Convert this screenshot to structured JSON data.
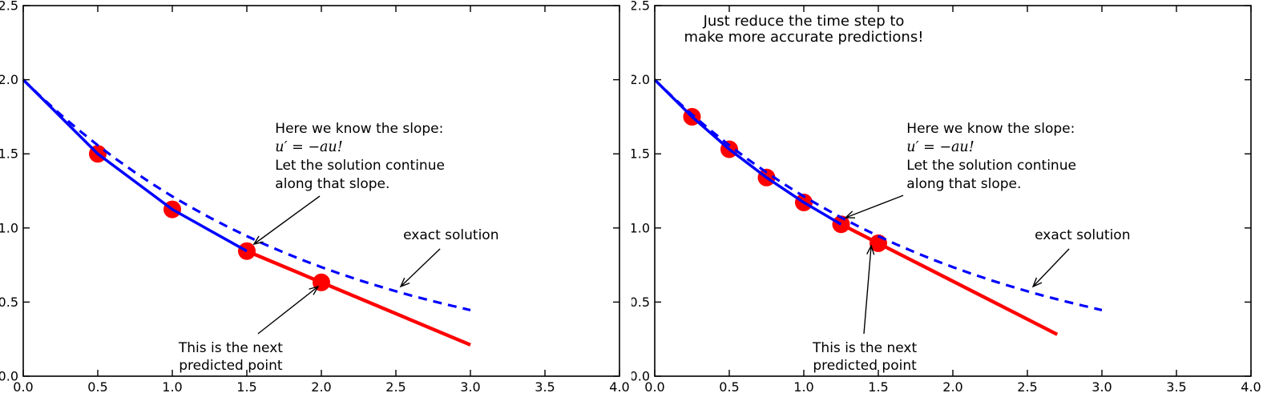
{
  "colors": {
    "blue": "#0000ff",
    "red": "#ff0000",
    "axis": "#000000",
    "text": "#000000",
    "background": "#ffffff"
  },
  "chart_data": [
    {
      "type": "line",
      "title_lines": [],
      "xlabel": "",
      "ylabel": "",
      "xlim": [
        0,
        4
      ],
      "ylim": [
        0,
        2.5
      ],
      "xtick_values": [
        0,
        0.5,
        1,
        1.5,
        2,
        2.5,
        3,
        3.5,
        4
      ],
      "xtick_labels": [
        "0.0",
        "0.5",
        "1.0",
        "1.5",
        "2.0",
        "2.5",
        "3.0",
        "3.5",
        "4.0"
      ],
      "ytick_values": [
        0,
        0.5,
        1,
        1.5,
        2,
        2.5
      ],
      "ytick_labels": [
        "0.0",
        "0.5",
        "1.0",
        "1.5",
        "2.0",
        "2.5"
      ],
      "grid": false,
      "series": [
        {
          "name": "numerical-solution",
          "style": "solid",
          "color": "blue",
          "lw": 3.5,
          "x": [
            0,
            0.5,
            1.0,
            1.5
          ],
          "y": [
            2.0,
            1.5,
            1.125,
            0.844
          ]
        },
        {
          "name": "exact-solution",
          "style": "dashed",
          "color": "blue",
          "lw": 3.2,
          "x": [
            0,
            0.125,
            0.25,
            0.375,
            0.5,
            0.625,
            0.75,
            0.875,
            1,
            1.125,
            1.25,
            1.375,
            1.5,
            1.625,
            1.75,
            1.875,
            2,
            2.125,
            2.25,
            2.375,
            2.5,
            2.625,
            2.75,
            2.875,
            3
          ],
          "y": [
            2.0,
            1.879,
            1.765,
            1.658,
            1.558,
            1.463,
            1.375,
            1.291,
            1.213,
            1.14,
            1.071,
            1.006,
            0.945,
            0.887,
            0.834,
            0.783,
            0.736,
            0.691,
            0.649,
            0.61,
            0.573,
            0.538,
            0.506,
            0.475,
            0.446
          ]
        },
        {
          "name": "predicted-continuation",
          "style": "solid",
          "color": "red",
          "lw": 4.4,
          "x": [
            1.5,
            3.0
          ],
          "y": [
            0.844,
            0.211
          ]
        }
      ],
      "markers": {
        "color": "red",
        "r": 11,
        "points": [
          [
            0.5,
            1.5
          ],
          [
            1.0,
            1.125
          ],
          [
            1.5,
            0.844
          ],
          [
            2.0,
            0.633
          ]
        ]
      },
      "arrows": [
        {
          "from": [
            1.989,
            1.215
          ],
          "to": [
            1.548,
            0.891
          ]
        },
        {
          "from": [
            1.575,
            0.286
          ],
          "to": [
            1.978,
            0.605
          ]
        },
        {
          "from": [
            2.796,
            0.859
          ],
          "to": [
            2.532,
            0.605
          ]
        }
      ],
      "annotations": [
        {
          "name": "slope-note",
          "x": 1.69,
          "y": 1.641,
          "anchor": "start",
          "line_height": 23,
          "size": 17,
          "lines": [
            {
              "text": "Here we know the slope:",
              "math": false
            },
            {
              "text": "u′ = −au!",
              "math": true
            },
            {
              "text": "Let the solution continue",
              "math": false
            },
            {
              "text": "along that slope.",
              "math": false
            }
          ]
        },
        {
          "name": "exact-solution-label",
          "x": 2.87,
          "y": 0.923,
          "anchor": "middle",
          "line_height": 22,
          "size": 17,
          "lines": [
            {
              "text": "exact solution",
              "math": false
            }
          ]
        },
        {
          "name": "predicted-point-label",
          "x": 1.392,
          "y": 0.162,
          "anchor": "middle",
          "line_height": 22,
          "size": 17,
          "lines": [
            {
              "text": "This is the next",
              "math": false
            },
            {
              "text": "predicted point",
              "math": false
            }
          ]
        }
      ]
    },
    {
      "type": "line",
      "title_lines": [
        "Just reduce the time step to",
        "make more accurate predictions!"
      ],
      "xlabel": "",
      "ylabel": "",
      "xlim": [
        0,
        4
      ],
      "ylim": [
        0,
        2.5
      ],
      "xtick_values": [
        0,
        0.5,
        1,
        1.5,
        2,
        2.5,
        3,
        3.5,
        4
      ],
      "xtick_labels": [
        "0.0",
        "0.5",
        "1.0",
        "1.5",
        "2.0",
        "2.5",
        "3.0",
        "3.5",
        "4.0"
      ],
      "ytick_values": [
        0,
        0.5,
        1,
        1.5,
        2,
        2.5
      ],
      "ytick_labels": [
        "0.0",
        "0.5",
        "1.0",
        "1.5",
        "2.0",
        "2.5"
      ],
      "grid": false,
      "series": [
        {
          "name": "numerical-solution",
          "style": "solid",
          "color": "blue",
          "lw": 3.5,
          "x": [
            0,
            0.25,
            0.5,
            0.75,
            1.0,
            1.25
          ],
          "y": [
            2.0,
            1.75,
            1.531,
            1.34,
            1.172,
            1.025
          ]
        },
        {
          "name": "exact-solution",
          "style": "dashed",
          "color": "blue",
          "lw": 3.2,
          "x": [
            0,
            0.125,
            0.25,
            0.375,
            0.5,
            0.625,
            0.75,
            0.875,
            1,
            1.125,
            1.25,
            1.375,
            1.5,
            1.625,
            1.75,
            1.875,
            2,
            2.125,
            2.25,
            2.375,
            2.5,
            2.625,
            2.75,
            2.875,
            3
          ],
          "y": [
            2.0,
            1.879,
            1.765,
            1.658,
            1.558,
            1.463,
            1.375,
            1.291,
            1.213,
            1.14,
            1.071,
            1.006,
            0.945,
            0.887,
            0.834,
            0.783,
            0.736,
            0.691,
            0.649,
            0.61,
            0.573,
            0.538,
            0.506,
            0.475,
            0.446
          ]
        },
        {
          "name": "predicted-continuation",
          "style": "solid",
          "color": "red",
          "lw": 4.4,
          "x": [
            1.25,
            2.7
          ],
          "y": [
            1.025,
            0.282
          ]
        }
      ],
      "markers": {
        "color": "red",
        "r": 11,
        "points": [
          [
            0.25,
            1.75
          ],
          [
            0.5,
            1.531
          ],
          [
            0.75,
            1.34
          ],
          [
            1.0,
            1.172
          ],
          [
            1.25,
            1.025
          ],
          [
            1.5,
            0.897
          ]
        ]
      },
      "arrows": [
        {
          "from": [
            1.667,
            1.22
          ],
          "to": [
            1.28,
            1.069
          ]
        },
        {
          "from": [
            1.403,
            0.286
          ],
          "to": [
            1.452,
            0.88
          ]
        },
        {
          "from": [
            2.78,
            0.859
          ],
          "to": [
            2.538,
            0.605
          ]
        }
      ],
      "annotations": [
        {
          "name": "plot-title",
          "x": 1.0,
          "y": 2.365,
          "anchor": "middle",
          "line_height": 20,
          "size": 18,
          "lines": [
            {
              "text": "Just reduce the time step to",
              "math": false
            },
            {
              "text": "make more accurate predictions!",
              "math": false
            }
          ]
        },
        {
          "name": "slope-note",
          "x": 1.69,
          "y": 1.641,
          "anchor": "start",
          "line_height": 23,
          "size": 17,
          "lines": [
            {
              "text": "Here we know the slope:",
              "math": false
            },
            {
              "text": "u′ = −au!",
              "math": true
            },
            {
              "text": "Let the solution continue",
              "math": false
            },
            {
              "text": "along that slope.",
              "math": false
            }
          ]
        },
        {
          "name": "exact-solution-label",
          "x": 2.87,
          "y": 0.923,
          "anchor": "middle",
          "line_height": 22,
          "size": 17,
          "lines": [
            {
              "text": "exact solution",
              "math": false
            }
          ]
        },
        {
          "name": "predicted-point-label",
          "x": 1.409,
          "y": 0.162,
          "anchor": "middle",
          "line_height": 22,
          "size": 17,
          "lines": [
            {
              "text": "This is the next",
              "math": false
            },
            {
              "text": "predicted point",
              "math": false
            }
          ]
        }
      ]
    }
  ]
}
